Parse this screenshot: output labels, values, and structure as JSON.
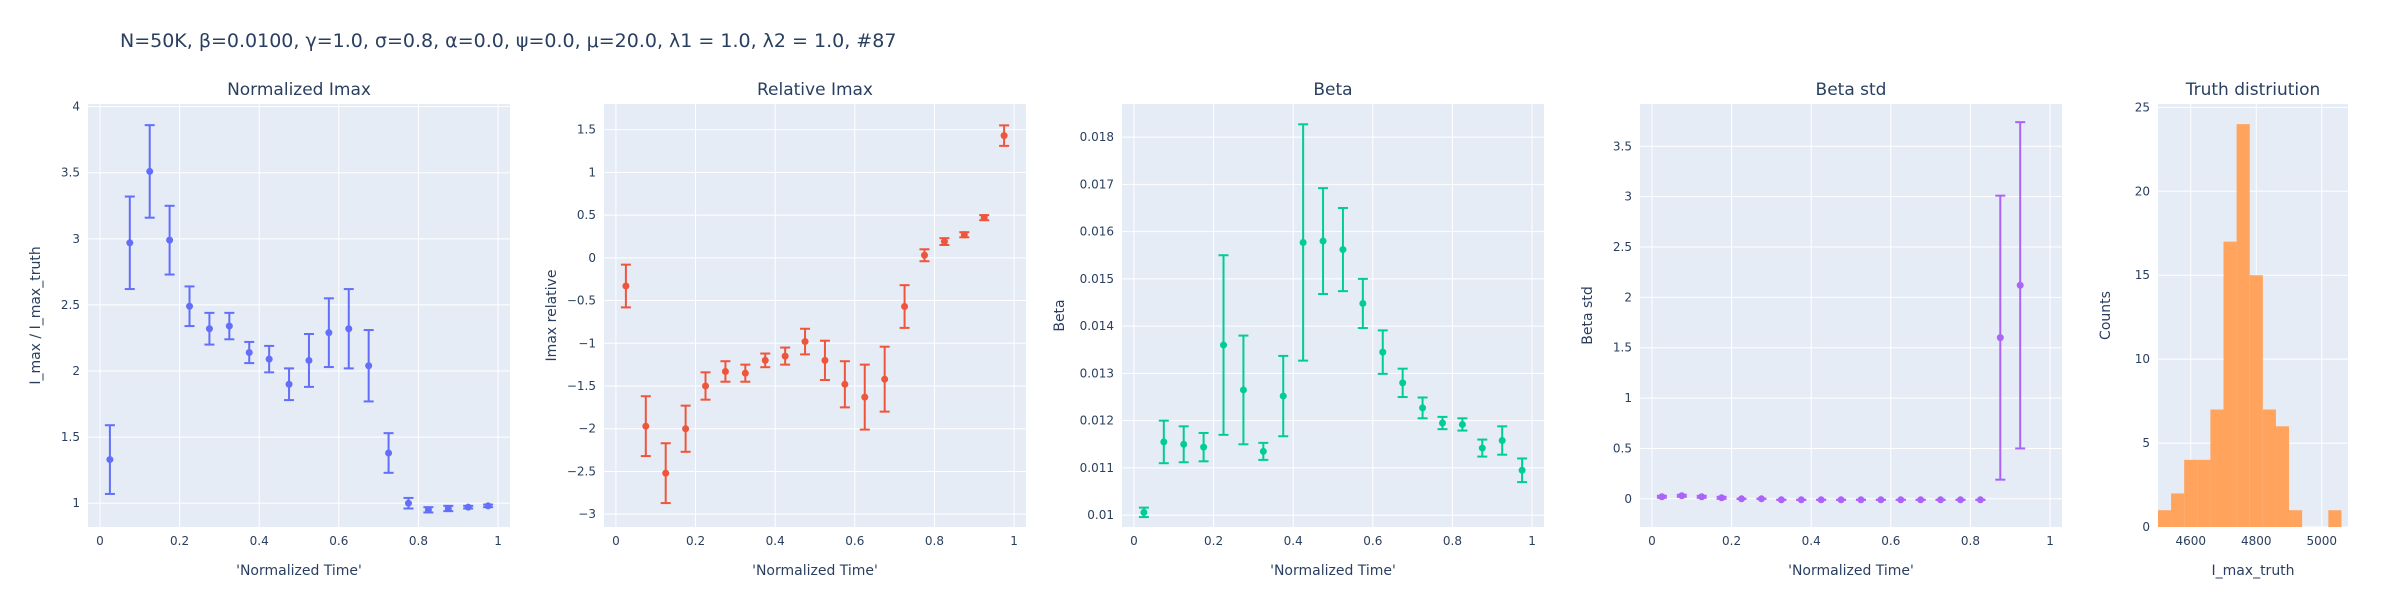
{
  "figure_title": "N=50K, β=0.0100, γ=1.0, σ=0.8,  α=0.0, ψ=0.0, μ=20.0, λ1 = 1.0, λ2 = 1.0, #87",
  "chart_data": [
    {
      "type": "scatter",
      "title": "Normalized Imax",
      "xlabel": "'Normalized Time'",
      "ylabel": "I_max / I_max_truth",
      "color": "#636efa",
      "xlim": [
        -0.03,
        1.03
      ],
      "ylim": [
        0.82,
        4.02
      ],
      "xticks": [
        0,
        0.2,
        0.4,
        0.6,
        0.8,
        1
      ],
      "xtick_labels": [
        "0",
        "0.2",
        "0.4",
        "0.6",
        "0.8",
        "1"
      ],
      "yticks": [
        1,
        1.5,
        2,
        2.5,
        3,
        3.5,
        4
      ],
      "ytick_labels": [
        "1",
        "1.5",
        "2",
        "2.5",
        "3",
        "3.5",
        "4"
      ],
      "error_bars": true,
      "x": [
        0.025,
        0.075,
        0.125,
        0.175,
        0.225,
        0.275,
        0.325,
        0.375,
        0.425,
        0.475,
        0.525,
        0.575,
        0.625,
        0.675,
        0.725,
        0.775,
        0.825,
        0.875,
        0.925,
        0.975
      ],
      "y": [
        1.33,
        2.97,
        3.51,
        2.99,
        2.49,
        2.32,
        2.34,
        2.14,
        2.09,
        1.9,
        2.08,
        2.29,
        2.32,
        2.04,
        1.38,
        1.0,
        0.95,
        0.96,
        0.97,
        0.98
      ],
      "err_minus": [
        0.26,
        0.35,
        0.35,
        0.26,
        0.15,
        0.12,
        0.1,
        0.08,
        0.1,
        0.12,
        0.2,
        0.26,
        0.3,
        0.27,
        0.15,
        0.04,
        0.02,
        0.02,
        0.01,
        0.01
      ],
      "err_plus": [
        0.26,
        0.35,
        0.35,
        0.26,
        0.15,
        0.12,
        0.1,
        0.08,
        0.1,
        0.12,
        0.2,
        0.26,
        0.3,
        0.27,
        0.15,
        0.04,
        0.02,
        0.02,
        0.01,
        0.01
      ]
    },
    {
      "type": "scatter",
      "title": "Relative Imax",
      "xlabel": "'Normalized Time'",
      "ylabel": "Imax relative",
      "color": "#ef553b",
      "xlim": [
        -0.03,
        1.03
      ],
      "ylim": [
        -3.15,
        1.8
      ],
      "xticks": [
        0,
        0.2,
        0.4,
        0.6,
        0.8,
        1
      ],
      "xtick_labels": [
        "0",
        "0.2",
        "0.4",
        "0.6",
        "0.8",
        "1"
      ],
      "yticks": [
        -3,
        -2.5,
        -2,
        -1.5,
        -1,
        -0.5,
        0,
        0.5,
        1,
        1.5
      ],
      "ytick_labels": [
        "−3",
        "−2.5",
        "−2",
        "−1.5",
        "−1",
        "−0.5",
        "0",
        "0.5",
        "1",
        "1.5"
      ],
      "error_bars": true,
      "x": [
        0.025,
        0.075,
        0.125,
        0.175,
        0.225,
        0.275,
        0.325,
        0.375,
        0.425,
        0.475,
        0.525,
        0.575,
        0.625,
        0.675,
        0.725,
        0.775,
        0.825,
        0.875,
        0.925,
        0.975
      ],
      "y": [
        -0.33,
        -1.97,
        -2.52,
        -2.0,
        -1.5,
        -1.33,
        -1.35,
        -1.2,
        -1.15,
        -0.98,
        -1.2,
        -1.48,
        -1.63,
        -1.42,
        -0.57,
        0.03,
        0.19,
        0.27,
        0.47,
        1.43
      ],
      "err_minus": [
        0.25,
        0.35,
        0.35,
        0.27,
        0.16,
        0.12,
        0.1,
        0.08,
        0.1,
        0.15,
        0.23,
        0.27,
        0.38,
        0.38,
        0.25,
        0.07,
        0.04,
        0.03,
        0.03,
        0.12
      ],
      "err_plus": [
        0.25,
        0.35,
        0.35,
        0.27,
        0.16,
        0.12,
        0.1,
        0.08,
        0.1,
        0.15,
        0.23,
        0.27,
        0.38,
        0.38,
        0.25,
        0.07,
        0.04,
        0.03,
        0.03,
        0.12
      ]
    },
    {
      "type": "scatter",
      "title": "Beta",
      "xlabel": "'Normalized Time'",
      "ylabel": "Beta",
      "color": "#00cc96",
      "xlim": [
        -0.03,
        1.03
      ],
      "ylim": [
        0.00975,
        0.0187
      ],
      "xticks": [
        0,
        0.2,
        0.4,
        0.6,
        0.8,
        1
      ],
      "xtick_labels": [
        "0",
        "0.2",
        "0.4",
        "0.6",
        "0.8",
        "1"
      ],
      "yticks": [
        0.01,
        0.011,
        0.012,
        0.013,
        0.014,
        0.015,
        0.016,
        0.017,
        0.018
      ],
      "ytick_labels": [
        "0.01",
        "0.011",
        "0.012",
        "0.013",
        "0.014",
        "0.015",
        "0.016",
        "0.017",
        "0.018"
      ],
      "error_bars": true,
      "x": [
        0.025,
        0.075,
        0.125,
        0.175,
        0.225,
        0.275,
        0.325,
        0.375,
        0.425,
        0.475,
        0.525,
        0.575,
        0.625,
        0.675,
        0.725,
        0.775,
        0.825,
        0.875,
        0.925,
        0.975
      ],
      "y": [
        0.01006,
        0.01155,
        0.0115,
        0.01144,
        0.0136,
        0.01265,
        0.01135,
        0.01252,
        0.01577,
        0.0158,
        0.01562,
        0.01448,
        0.01345,
        0.0128,
        0.01227,
        0.01195,
        0.01192,
        0.01142,
        0.01158,
        0.01095
      ],
      "err_minus": [
        0.0001,
        0.00045,
        0.00038,
        0.0003,
        0.0019,
        0.00115,
        0.00018,
        0.00085,
        0.0025,
        0.00112,
        0.00088,
        0.00052,
        0.00046,
        0.0003,
        0.00022,
        0.00013,
        0.00013,
        0.00018,
        0.0003,
        0.00025
      ],
      "err_plus": [
        0.0001,
        0.00045,
        0.00038,
        0.0003,
        0.0019,
        0.00115,
        0.00018,
        0.00085,
        0.0025,
        0.00112,
        0.00088,
        0.00052,
        0.00046,
        0.0003,
        0.00022,
        0.00013,
        0.00013,
        0.00018,
        0.0003,
        0.00025
      ]
    },
    {
      "type": "scatter",
      "title": "Beta std",
      "xlabel": "'Normalized Time'",
      "ylabel": "Beta std",
      "color": "#ab63fa",
      "xlim": [
        -0.03,
        1.03
      ],
      "ylim": [
        -0.28,
        3.92
      ],
      "xticks": [
        0,
        0.2,
        0.4,
        0.6,
        0.8,
        1
      ],
      "xtick_labels": [
        "0",
        "0.2",
        "0.4",
        "0.6",
        "0.8",
        "1"
      ],
      "yticks": [
        0,
        0.5,
        1,
        1.5,
        2,
        2.5,
        3,
        3.5
      ],
      "ytick_labels": [
        "0",
        "0.5",
        "1",
        "1.5",
        "2",
        "2.5",
        "3",
        "3.5"
      ],
      "error_bars": true,
      "x": [
        0.025,
        0.075,
        0.125,
        0.175,
        0.225,
        0.275,
        0.325,
        0.375,
        0.425,
        0.475,
        0.525,
        0.575,
        0.625,
        0.675,
        0.725,
        0.775,
        0.825,
        0.875,
        0.925
      ],
      "y": [
        0.02,
        0.03,
        0.02,
        0.01,
        0.0,
        0.0,
        -0.01,
        -0.01,
        -0.01,
        -0.01,
        -0.01,
        -0.01,
        -0.01,
        -0.01,
        -0.01,
        -0.01,
        -0.01,
        1.6,
        2.12
      ],
      "err_minus": [
        0.01,
        0.01,
        0.01,
        0.01,
        0.0,
        0.0,
        0.0,
        0.0,
        0.0,
        0.0,
        0.0,
        0.0,
        0.0,
        0.0,
        0.0,
        0.0,
        0.0,
        1.41,
        1.62
      ],
      "err_plus": [
        0.01,
        0.01,
        0.01,
        0.01,
        0.0,
        0.0,
        0.0,
        0.0,
        0.0,
        0.0,
        0.0,
        0.0,
        0.0,
        0.0,
        0.0,
        0.0,
        0.0,
        1.41,
        1.62
      ]
    },
    {
      "type": "bar",
      "title": "Truth distriution",
      "xlabel": "I_max_truth",
      "ylabel": "Counts",
      "color": "#ffa15a",
      "xlim": [
        4500,
        5080
      ],
      "ylim": [
        0,
        25.2
      ],
      "xticks": [
        4600,
        4800,
        5000
      ],
      "xtick_labels": [
        "4600",
        "4800",
        "5000"
      ],
      "yticks": [
        0,
        5,
        10,
        15,
        20,
        25
      ],
      "ytick_labels": [
        "0",
        "5",
        "10",
        "15",
        "20",
        "25"
      ],
      "bin_width": 40,
      "bin_starts": [
        4500,
        4540,
        4580,
        4620,
        4660,
        4700,
        4740,
        4780,
        4820,
        4860,
        4900,
        4940,
        4980,
        5020,
        5060
      ],
      "values": [
        1,
        2,
        4,
        4,
        7,
        17,
        24,
        15,
        7,
        6,
        1,
        0,
        0,
        1,
        0
      ]
    }
  ]
}
